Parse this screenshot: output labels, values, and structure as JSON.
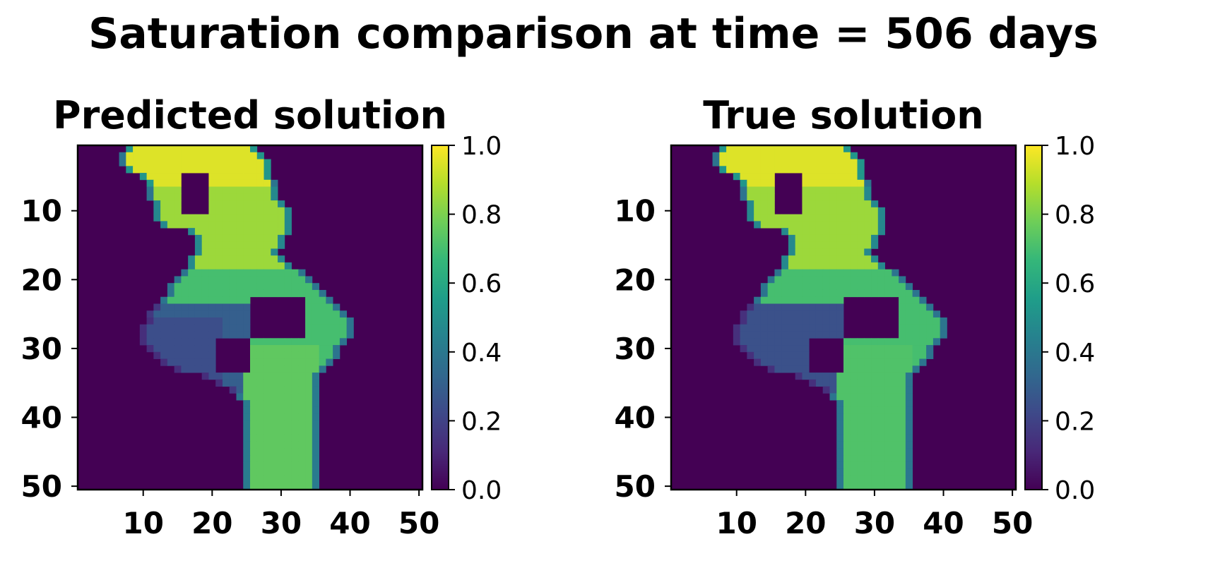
{
  "figure": {
    "suptitle": "Saturation comparison at time = 506 days"
  },
  "colors": {
    "viridis": [
      "#440154",
      "#482878",
      "#3e4989",
      "#31688e",
      "#26828e",
      "#1f9e89",
      "#35b779",
      "#6ece58",
      "#b5de2b",
      "#fde725"
    ],
    "background": "#440154"
  },
  "chart_data": [
    {
      "type": "heatmap",
      "title": "Predicted solution",
      "grid_size": [
        50,
        50
      ],
      "xlim": [
        0.5,
        50.5
      ],
      "ylim": [
        50.5,
        0.5
      ],
      "xticks": [
        10,
        20,
        30,
        40,
        50
      ],
      "yticks": [
        10,
        20,
        30,
        40,
        50
      ],
      "x_tick_labels": [
        "10",
        "20",
        "30",
        "40",
        "50"
      ],
      "y_tick_labels": [
        "10",
        "20",
        "30",
        "40",
        "50"
      ],
      "colorbar": {
        "min": 0.0,
        "max": 1.0,
        "ticks": [
          "0.0",
          "0.2",
          "0.4",
          "0.6",
          "0.8",
          "1.0"
        ]
      },
      "value_range": [
        0.0,
        1.0
      ],
      "regions": [
        {
          "label": "upper plume",
          "rows": [
            1,
            6
          ],
          "cols": [
            8,
            28
          ],
          "saturation": 0.95
        },
        {
          "label": "upper-middle plume",
          "rows": [
            7,
            18
          ],
          "cols": [
            12,
            31
          ],
          "saturation": 0.85
        },
        {
          "label": "middle arm",
          "rows": [
            19,
            30
          ],
          "cols": [
            15,
            40
          ],
          "saturation": 0.7
        },
        {
          "label": "left fringe",
          "rows": [
            24,
            36
          ],
          "cols": [
            10,
            25
          ],
          "saturation": 0.3
        },
        {
          "label": "lower column",
          "rows": [
            30,
            50
          ],
          "cols": [
            25,
            35
          ],
          "saturation": 0.75
        }
      ]
    },
    {
      "type": "heatmap",
      "title": "True solution",
      "grid_size": [
        50,
        50
      ],
      "xlim": [
        0.5,
        50.5
      ],
      "ylim": [
        50.5,
        0.5
      ],
      "xticks": [
        10,
        20,
        30,
        40,
        50
      ],
      "yticks": [
        10,
        20,
        30,
        40,
        50
      ],
      "x_tick_labels": [
        "10",
        "20",
        "30",
        "40",
        "50"
      ],
      "y_tick_labels": [
        "10",
        "20",
        "30",
        "40",
        "50"
      ],
      "colorbar": {
        "min": 0.0,
        "max": 1.0,
        "ticks": [
          "0.0",
          "0.2",
          "0.4",
          "0.6",
          "0.8",
          "1.0"
        ]
      },
      "value_range": [
        0.0,
        1.0
      ],
      "regions": [
        {
          "label": "upper plume",
          "rows": [
            1,
            6
          ],
          "cols": [
            8,
            28
          ],
          "saturation": 0.95
        },
        {
          "label": "upper-middle plume",
          "rows": [
            7,
            18
          ],
          "cols": [
            12,
            31
          ],
          "saturation": 0.85
        },
        {
          "label": "middle arm",
          "rows": [
            19,
            30
          ],
          "cols": [
            15,
            40
          ],
          "saturation": 0.7
        },
        {
          "label": "left fringe",
          "rows": [
            24,
            36
          ],
          "cols": [
            10,
            25
          ],
          "saturation": 0.25
        },
        {
          "label": "lower column",
          "rows": [
            30,
            50
          ],
          "cols": [
            25,
            35
          ],
          "saturation": 0.72
        }
      ]
    }
  ]
}
